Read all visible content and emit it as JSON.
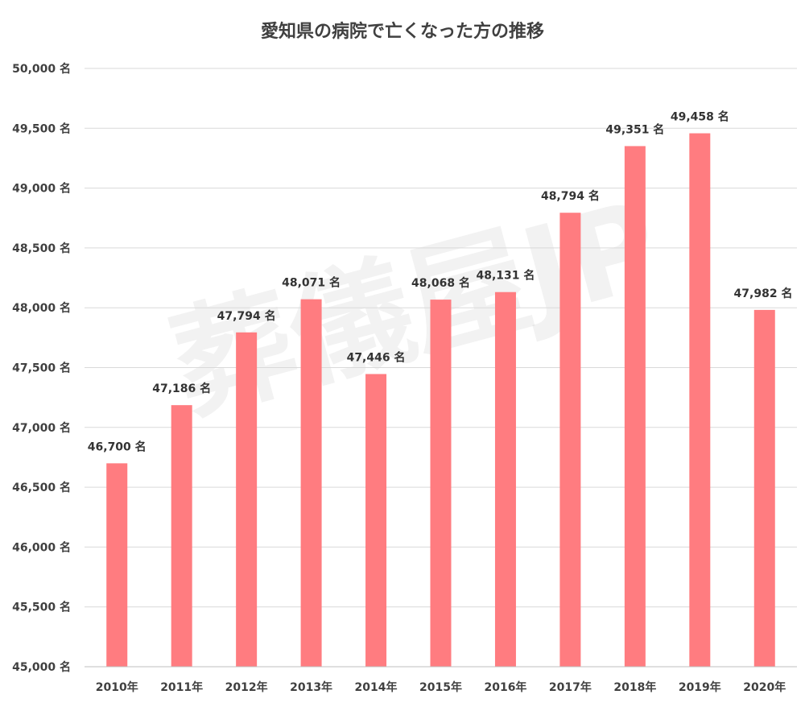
{
  "chart_data": {
    "type": "bar",
    "title": "愛知県の病院で亡くなった方の推移",
    "categories": [
      "2010年",
      "2011年",
      "2012年",
      "2013年",
      "2014年",
      "2015年",
      "2016年",
      "2017年",
      "2018年",
      "2019年",
      "2020年"
    ],
    "values": [
      46700,
      47186,
      47794,
      48071,
      47446,
      48068,
      48131,
      48794,
      49351,
      49458,
      47982
    ],
    "value_labels": [
      "46,700 名",
      "47,186 名",
      "47,794 名",
      "48,071 名",
      "47,446 名",
      "48,068 名",
      "48,131 名",
      "48,794 名",
      "49,351 名",
      "49,458 名",
      "47,982 名"
    ],
    "y_ticks": [
      45000,
      45500,
      46000,
      46500,
      47000,
      47500,
      48000,
      48500,
      49000,
      49500,
      50000
    ],
    "y_tick_labels": [
      "45,000 名",
      "45,500 名",
      "46,000 名",
      "46,500 名",
      "47,000 名",
      "47,500 名",
      "48,000 名",
      "48,500 名",
      "49,000 名",
      "49,500 名",
      "50,000 名"
    ],
    "ylim": [
      45000,
      50000
    ],
    "xlabel": "",
    "ylabel": "",
    "grid": true,
    "bar_color": "#ff7c80",
    "watermark": "葬儀屋JP"
  }
}
